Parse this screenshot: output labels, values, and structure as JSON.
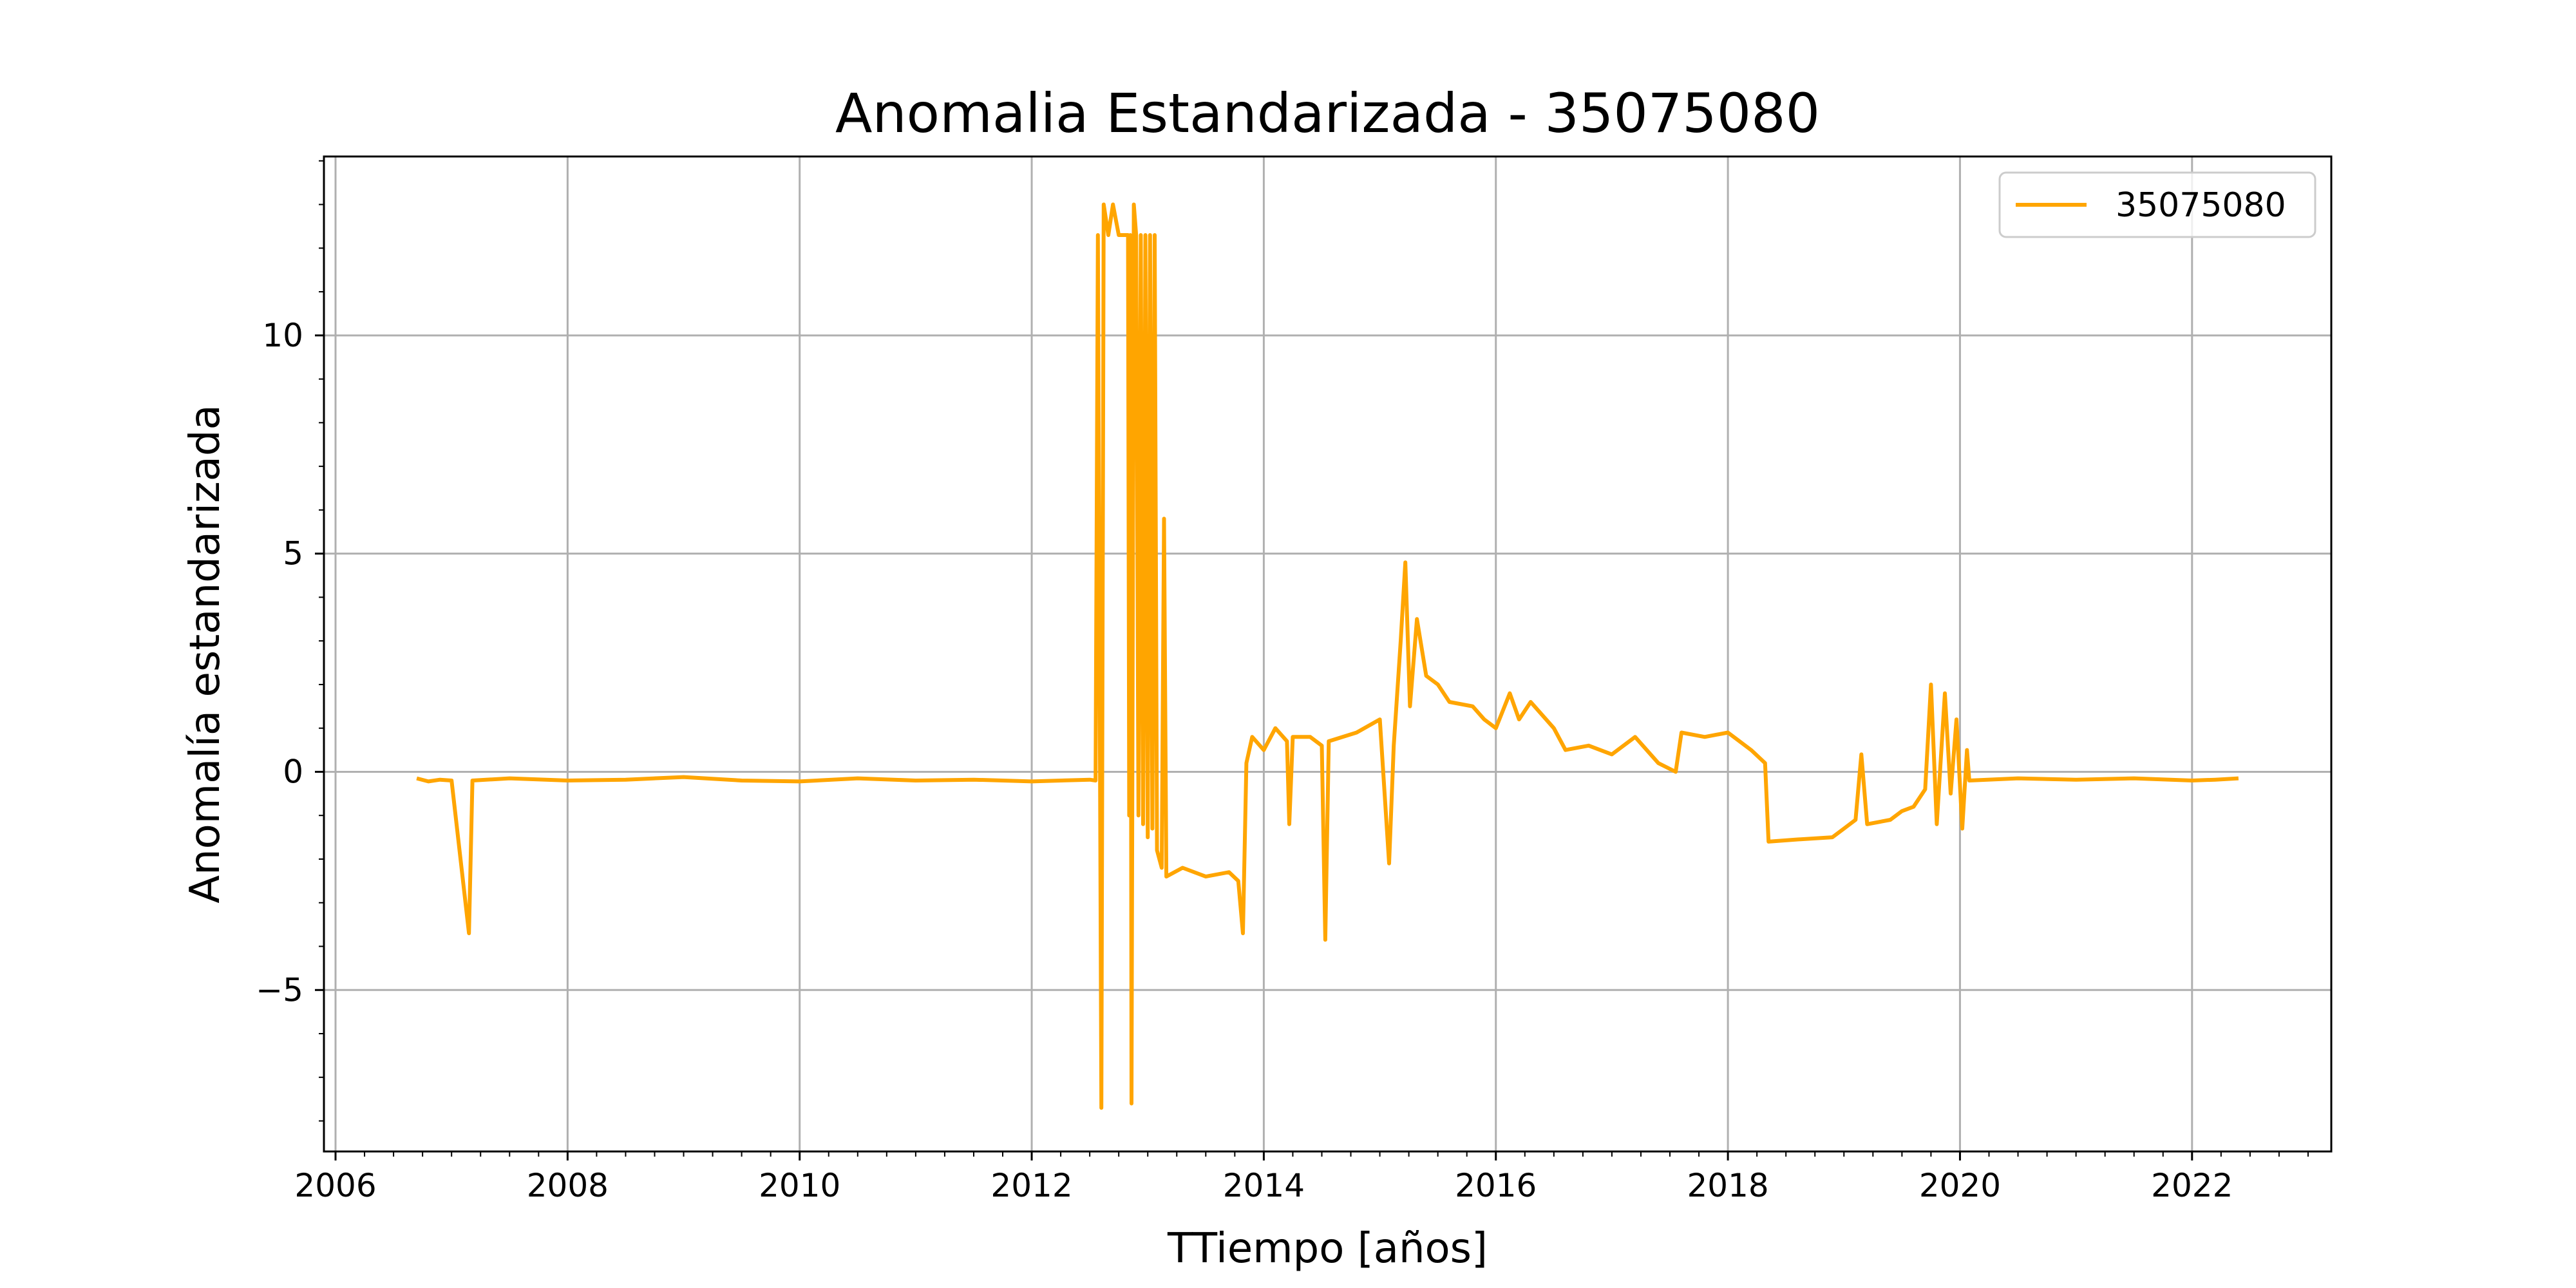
{
  "chart_data": {
    "type": "line",
    "title": "Anomalia Estandarizada - 35075080",
    "xlabel": "TTiempo [años]",
    "ylabel": "Anomalía estandarizada",
    "xlim": [
      2005.9,
      2023.2
    ],
    "ylim": [
      -8.7,
      14.1
    ],
    "x_ticks": [
      2006,
      2008,
      2010,
      2012,
      2014,
      2016,
      2018,
      2020,
      2022
    ],
    "x_tick_labels": [
      "2006",
      "2008",
      "2010",
      "2012",
      "2014",
      "2016",
      "2018",
      "2020",
      "2022"
    ],
    "y_ticks": [
      -5,
      0,
      5,
      10
    ],
    "y_tick_labels": [
      "−5",
      "0",
      "5",
      "10"
    ],
    "grid": true,
    "legend_position": "top-right",
    "series": [
      {
        "name": "35075080",
        "color": "#FFA500",
        "points": [
          [
            2006.7,
            -0.15
          ],
          [
            2006.8,
            -0.22
          ],
          [
            2006.9,
            -0.18
          ],
          [
            2007.0,
            -0.2
          ],
          [
            2007.15,
            -3.7
          ],
          [
            2007.18,
            -0.2
          ],
          [
            2007.5,
            -0.15
          ],
          [
            2008.0,
            -0.2
          ],
          [
            2008.5,
            -0.18
          ],
          [
            2009.0,
            -0.12
          ],
          [
            2009.5,
            -0.2
          ],
          [
            2010.0,
            -0.22
          ],
          [
            2010.5,
            -0.15
          ],
          [
            2011.0,
            -0.2
          ],
          [
            2011.5,
            -0.18
          ],
          [
            2012.0,
            -0.22
          ],
          [
            2012.5,
            -0.18
          ],
          [
            2012.55,
            -0.2
          ],
          [
            2012.57,
            12.3
          ],
          [
            2012.6,
            -7.7
          ],
          [
            2012.62,
            13.0
          ],
          [
            2012.66,
            12.3
          ],
          [
            2012.7,
            13.0
          ],
          [
            2012.75,
            12.3
          ],
          [
            2012.83,
            12.3
          ],
          [
            2012.84,
            -1.0
          ],
          [
            2012.85,
            12.3
          ],
          [
            2012.86,
            -7.6
          ],
          [
            2012.88,
            13.0
          ],
          [
            2012.9,
            12.3
          ],
          [
            2012.92,
            -1.0
          ],
          [
            2012.94,
            12.3
          ],
          [
            2012.96,
            -1.2
          ],
          [
            2012.98,
            12.3
          ],
          [
            2013.0,
            -1.5
          ],
          [
            2013.02,
            12.3
          ],
          [
            2013.04,
            -1.3
          ],
          [
            2013.06,
            12.3
          ],
          [
            2013.08,
            -1.8
          ],
          [
            2013.12,
            -2.2
          ],
          [
            2013.14,
            5.8
          ],
          [
            2013.16,
            -2.4
          ],
          [
            2013.3,
            -2.2
          ],
          [
            2013.5,
            -2.4
          ],
          [
            2013.7,
            -2.3
          ],
          [
            2013.78,
            -2.5
          ],
          [
            2013.82,
            -3.7
          ],
          [
            2013.85,
            0.2
          ],
          [
            2013.9,
            0.8
          ],
          [
            2014.0,
            0.5
          ],
          [
            2014.1,
            1.0
          ],
          [
            2014.2,
            0.7
          ],
          [
            2014.22,
            -1.2
          ],
          [
            2014.25,
            0.8
          ],
          [
            2014.4,
            0.8
          ],
          [
            2014.5,
            0.6
          ],
          [
            2014.53,
            -3.85
          ],
          [
            2014.56,
            0.7
          ],
          [
            2014.8,
            0.9
          ],
          [
            2015.0,
            1.2
          ],
          [
            2015.08,
            -2.1
          ],
          [
            2015.12,
            0.6
          ],
          [
            2015.18,
            3.0
          ],
          [
            2015.22,
            4.8
          ],
          [
            2015.26,
            1.5
          ],
          [
            2015.32,
            3.5
          ],
          [
            2015.4,
            2.2
          ],
          [
            2015.5,
            2.0
          ],
          [
            2015.6,
            1.6
          ],
          [
            2015.8,
            1.5
          ],
          [
            2015.9,
            1.2
          ],
          [
            2016.0,
            1.0
          ],
          [
            2016.12,
            1.8
          ],
          [
            2016.2,
            1.2
          ],
          [
            2016.3,
            1.6
          ],
          [
            2016.5,
            1.0
          ],
          [
            2016.6,
            0.5
          ],
          [
            2016.8,
            0.6
          ],
          [
            2017.0,
            0.4
          ],
          [
            2017.2,
            0.8
          ],
          [
            2017.4,
            0.2
          ],
          [
            2017.55,
            0.0
          ],
          [
            2017.6,
            0.9
          ],
          [
            2017.8,
            0.8
          ],
          [
            2018.0,
            0.9
          ],
          [
            2018.2,
            0.5
          ],
          [
            2018.32,
            0.2
          ],
          [
            2018.35,
            -1.6
          ],
          [
            2018.6,
            -1.55
          ],
          [
            2018.9,
            -1.5
          ],
          [
            2019.0,
            -1.3
          ],
          [
            2019.1,
            -1.1
          ],
          [
            2019.15,
            0.4
          ],
          [
            2019.2,
            -1.2
          ],
          [
            2019.4,
            -1.1
          ],
          [
            2019.5,
            -0.9
          ],
          [
            2019.6,
            -0.8
          ],
          [
            2019.7,
            -0.4
          ],
          [
            2019.75,
            2.0
          ],
          [
            2019.8,
            -1.2
          ],
          [
            2019.87,
            1.8
          ],
          [
            2019.92,
            -0.5
          ],
          [
            2019.97,
            1.2
          ],
          [
            2020.02,
            -1.3
          ],
          [
            2020.06,
            0.5
          ],
          [
            2020.08,
            -0.2
          ],
          [
            2020.5,
            -0.15
          ],
          [
            2021.0,
            -0.18
          ],
          [
            2021.5,
            -0.15
          ],
          [
            2022.0,
            -0.2
          ],
          [
            2022.2,
            -0.18
          ],
          [
            2022.4,
            -0.15
          ]
        ]
      }
    ]
  }
}
